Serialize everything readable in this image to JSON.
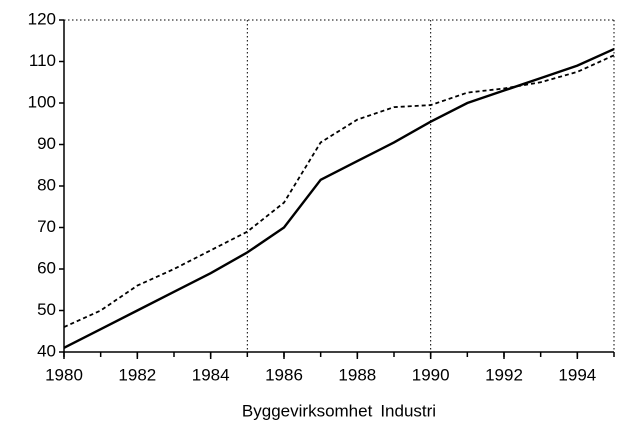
{
  "chart_data": {
    "type": "line",
    "x": [
      1980,
      1981,
      1982,
      1983,
      1984,
      1985,
      1986,
      1987,
      1988,
      1989,
      1990,
      1991,
      1992,
      1993,
      1994,
      1995
    ],
    "series": [
      {
        "name": "Byggevirksomhet",
        "color": "#000000",
        "dash": "solid",
        "values": [
          41,
          45.5,
          50,
          54.5,
          59,
          64,
          70,
          81.5,
          86,
          90.5,
          95.5,
          100,
          103,
          106,
          109,
          113
        ]
      },
      {
        "name": "Industri",
        "color": "#000000",
        "dash": "dashed",
        "values": [
          46,
          50,
          56,
          60,
          64.5,
          69,
          76,
          90.5,
          96,
          99,
          99.5,
          102.5,
          103.5,
          105,
          107.5,
          111.5
        ]
      }
    ],
    "xlim": [
      1980,
      1995
    ],
    "xticks": [
      1980,
      1982,
      1984,
      1986,
      1988,
      1990,
      1992,
      1994
    ],
    "x_minor_step": 1,
    "xgrid": [
      1980,
      1985,
      1990,
      1995
    ],
    "ylim": [
      40,
      120
    ],
    "yticks": [
      40,
      50,
      60,
      70,
      80,
      90,
      100,
      110,
      120
    ],
    "legend": "bottom"
  }
}
